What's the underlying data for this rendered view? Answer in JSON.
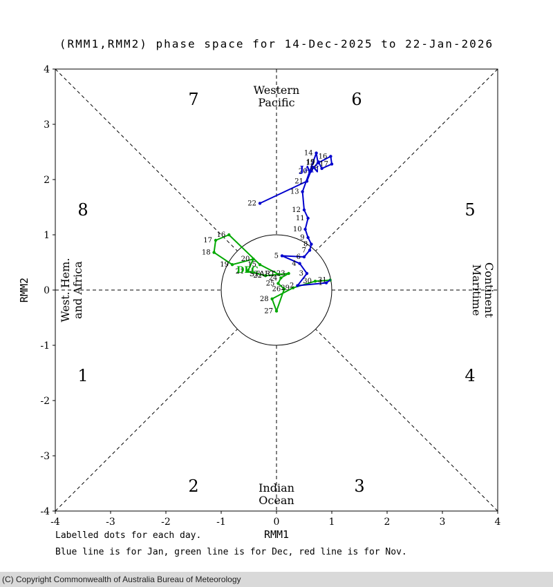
{
  "title": "(RMM1,RMM2) phase space for 14-Dec-2025 to 22-Jan-2026",
  "captions": {
    "line1": "Labelled dots for each day.",
    "line2": "Blue line is for Jan, green line is for Dec, red line is for Nov."
  },
  "copyright": "(C) Copyright Commonwealth of Australia Bureau of Meteorology",
  "chart_data": {
    "type": "line",
    "title": "(RMM1,RMM2) phase space for 14-Dec-2025 to 22-Jan-2026",
    "xlabel": "RMM1",
    "ylabel": "RMM2",
    "xlim": [
      -4,
      4
    ],
    "ylim": [
      -4,
      4
    ],
    "ticks": [
      -4,
      -3,
      -2,
      -1,
      0,
      1,
      2,
      3,
      4
    ],
    "unit_circle_radius": 1,
    "grid": "dashed octant divider lines through origin",
    "legend_position": "none",
    "colors": {
      "jan": "#0000cd",
      "dec": "#00a800",
      "nov": "#cc0000"
    },
    "phase_labels": [
      {
        "label": "1",
        "x": -3.5,
        "y": -1.55
      },
      {
        "label": "2",
        "x": -1.5,
        "y": -3.55
      },
      {
        "label": "3",
        "x": 1.5,
        "y": -3.55
      },
      {
        "label": "4",
        "x": 3.5,
        "y": -1.55
      },
      {
        "label": "5",
        "x": 3.5,
        "y": 1.45
      },
      {
        "label": "6",
        "x": 1.45,
        "y": 3.45
      },
      {
        "label": "7",
        "x": -1.5,
        "y": 3.45
      },
      {
        "label": "8",
        "x": -3.5,
        "y": 1.45
      }
    ],
    "region_labels": [
      {
        "label": "Western\nPacific",
        "x": 0,
        "y": 3.55,
        "rotate": 0
      },
      {
        "label": "Indian\nOcean",
        "x": 0,
        "y": -3.65,
        "rotate": 0
      },
      {
        "label": "Maritime\nContinent",
        "x": 3.55,
        "y": 0,
        "rotate": 90
      },
      {
        "label": "West. Hem.\nand Africa",
        "x": -3.75,
        "y": 0,
        "rotate": -90
      }
    ],
    "annotations": [
      {
        "text": "START",
        "x": -0.02,
        "y": 0.3,
        "anchor": "end",
        "color": "#000000",
        "size": 11,
        "bold": false
      },
      {
        "text": "DEC",
        "x": -0.33,
        "y": 0.36,
        "anchor": "end",
        "color": "#00a800",
        "size": 13,
        "bold": true
      },
      {
        "text": "JAN",
        "x": 0.42,
        "y": 2.18,
        "anchor": "start",
        "color": "#0000cd",
        "size": 13,
        "bold": true
      }
    ],
    "series": [
      {
        "name": "Dec",
        "month": "December 2025",
        "color": "#00a800",
        "points": [
          {
            "day": 14,
            "x": 0.05,
            "y": 0.28,
            "show_label": false
          },
          {
            "day": 15,
            "x": -0.3,
            "y": 0.46
          },
          {
            "day": 16,
            "x": -0.86,
            "y": 1.0
          },
          {
            "day": 17,
            "x": -1.1,
            "y": 0.9
          },
          {
            "day": 18,
            "x": -1.13,
            "y": 0.68
          },
          {
            "day": 19,
            "x": -0.8,
            "y": 0.46
          },
          {
            "day": 20,
            "x": -0.42,
            "y": 0.56
          },
          {
            "day": 21,
            "x": -0.52,
            "y": 0.34
          },
          {
            "day": 22,
            "x": -0.2,
            "y": 0.26
          },
          {
            "day": 23,
            "x": 0.22,
            "y": 0.3
          },
          {
            "day": 24,
            "x": 0.08,
            "y": 0.22
          },
          {
            "day": 25,
            "x": 0.03,
            "y": 0.12
          },
          {
            "day": 26,
            "x": 0.14,
            "y": 0.02
          },
          {
            "day": 27,
            "x": 0.0,
            "y": -0.38
          },
          {
            "day": 28,
            "x": -0.08,
            "y": -0.16
          },
          {
            "day": 29,
            "x": 0.3,
            "y": 0.04
          },
          {
            "day": 30,
            "x": 0.7,
            "y": 0.16
          },
          {
            "day": 31,
            "x": 0.97,
            "y": 0.18
          }
        ]
      },
      {
        "name": "Jan",
        "month": "January 2026",
        "color": "#0000cd",
        "points": [
          {
            "day": 1,
            "x": 0.9,
            "y": 0.13
          },
          {
            "day": 2,
            "x": 0.38,
            "y": 0.08
          },
          {
            "day": 3,
            "x": 0.55,
            "y": 0.3
          },
          {
            "day": 4,
            "x": 0.42,
            "y": 0.48
          },
          {
            "day": 5,
            "x": 0.1,
            "y": 0.62
          },
          {
            "day": 6,
            "x": 0.5,
            "y": 0.6
          },
          {
            "day": 7,
            "x": 0.6,
            "y": 0.72
          },
          {
            "day": 8,
            "x": 0.63,
            "y": 0.83
          },
          {
            "day": 9,
            "x": 0.57,
            "y": 0.95
          },
          {
            "day": 10,
            "x": 0.52,
            "y": 1.1
          },
          {
            "day": 11,
            "x": 0.57,
            "y": 1.3
          },
          {
            "day": 12,
            "x": 0.5,
            "y": 1.45
          },
          {
            "day": 13,
            "x": 0.47,
            "y": 1.78
          },
          {
            "day": 14,
            "x": 0.72,
            "y": 2.48
          },
          {
            "day": 15,
            "x": 0.75,
            "y": 2.3
          },
          {
            "day": 16,
            "x": 0.98,
            "y": 2.42
          },
          {
            "day": 17,
            "x": 1.0,
            "y": 2.28
          },
          {
            "day": 18,
            "x": 0.82,
            "y": 2.2
          },
          {
            "day": 19,
            "x": 0.76,
            "y": 2.32
          },
          {
            "day": 20,
            "x": 0.62,
            "y": 2.15
          },
          {
            "day": 21,
            "x": 0.55,
            "y": 1.97
          },
          {
            "day": 22,
            "x": -0.3,
            "y": 1.57
          }
        ]
      }
    ]
  }
}
